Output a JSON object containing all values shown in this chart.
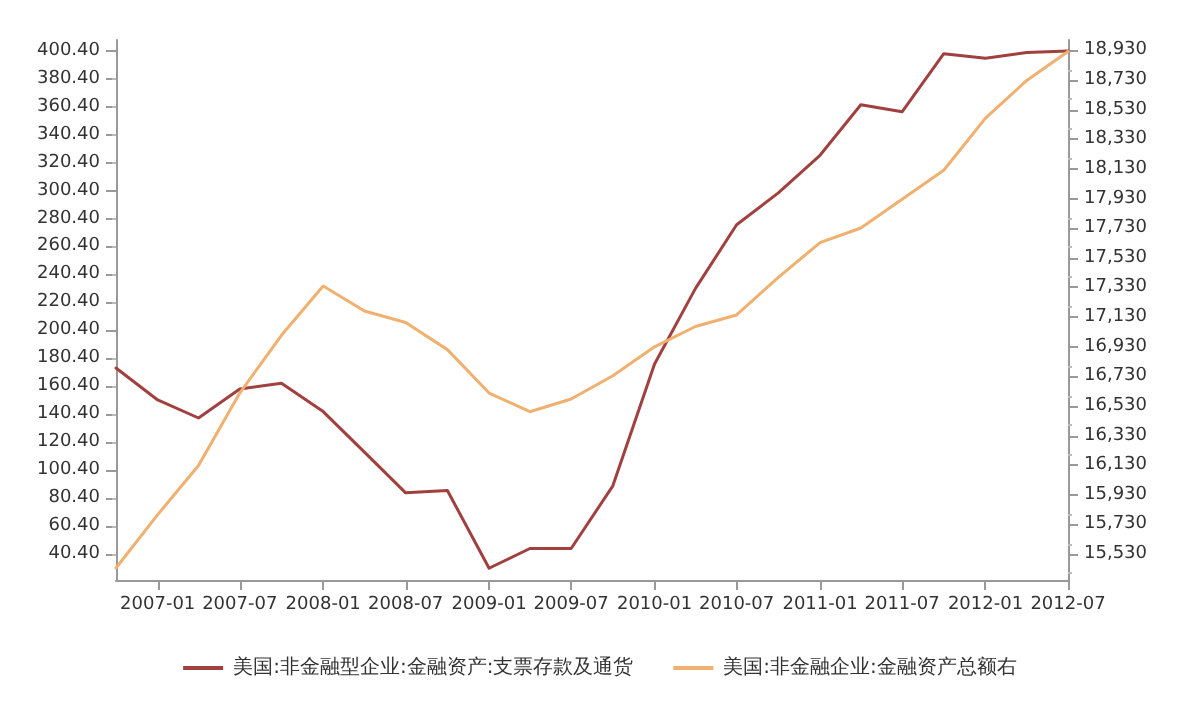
{
  "chart_data": {
    "type": "line",
    "x": [
      "2006-10",
      "2007-01",
      "2007-04",
      "2007-07",
      "2007-10",
      "2008-01",
      "2008-04",
      "2008-07",
      "2008-10",
      "2009-01",
      "2009-04",
      "2009-07",
      "2009-10",
      "2010-01",
      "2010-04",
      "2010-07",
      "2010-10",
      "2011-01",
      "2011-04",
      "2011-07",
      "2011-10",
      "2012-01",
      "2012-04",
      "2012-07"
    ],
    "series": [
      {
        "name": "美国:非金融型企业:金融资产:支票存款及通货",
        "color": "#a0403f",
        "values": [
          173.5,
          150.7,
          137.8,
          158.5,
          162.7,
          142.4,
          113.4,
          84.3,
          86,
          30.4,
          44.5,
          44.5,
          89.3,
          176.4,
          230.3,
          275.9,
          298.7,
          325.6,
          361.7,
          356.7,
          398.2,
          394.9,
          399,
          400.2
        ]
      },
      {
        "name": "美国:非金融企业:金融资产总额右",
        "color": "#f0b070",
        "axis": "y2",
        "values": [
          15436,
          15796,
          16128,
          16617,
          17007,
          17339,
          17171,
          17093,
          16910,
          16617,
          16491,
          16577,
          16734,
          16929,
          17066,
          17144,
          17398,
          17632,
          17731,
          17925,
          18121,
          18473,
          18727,
          18922
        ]
      }
    ],
    "xlim": [
      "2006-10",
      "2012-07"
    ],
    "xticks": [
      "2007-01",
      "2007-07",
      "2008-01",
      "2008-07",
      "2009-01",
      "2009-07",
      "2010-01",
      "2010-07",
      "2011-01",
      "2011-07",
      "2012-01",
      "2012-07"
    ],
    "ylim": [
      22,
      408
    ],
    "yticks": [
      {
        "value": 40.4,
        "label": "40.40"
      },
      {
        "value": 60.4,
        "label": "60.40"
      },
      {
        "value": 80.4,
        "label": "80.40"
      },
      {
        "value": 100.4,
        "label": "100.40"
      },
      {
        "value": 120.4,
        "label": "120.40"
      },
      {
        "value": 140.4,
        "label": "140.40"
      },
      {
        "value": 160.4,
        "label": "160.40"
      },
      {
        "value": 180.4,
        "label": "180.40"
      },
      {
        "value": 200.4,
        "label": "200.40"
      },
      {
        "value": 220.4,
        "label": "220.40"
      },
      {
        "value": 240.4,
        "label": "240.40"
      },
      {
        "value": 260.4,
        "label": "260.40"
      },
      {
        "value": 280.4,
        "label": "280.40"
      },
      {
        "value": 300.4,
        "label": "300.40"
      },
      {
        "value": 320.4,
        "label": "320.40"
      },
      {
        "value": 340.4,
        "label": "340.40"
      },
      {
        "value": 360.4,
        "label": "360.40"
      },
      {
        "value": 380.4,
        "label": "380.40"
      },
      {
        "value": 400.4,
        "label": "400.40"
      }
    ],
    "y2lim": [
      15355,
      19000
    ],
    "y2ticks": [
      {
        "value": 15530,
        "label": "15,530"
      },
      {
        "value": 15730,
        "label": "15,730"
      },
      {
        "value": 15930,
        "label": "15,930"
      },
      {
        "value": 16130,
        "label": "16,130"
      },
      {
        "value": 16330,
        "label": "16,330"
      },
      {
        "value": 16530,
        "label": "16,530"
      },
      {
        "value": 16730,
        "label": "16,730"
      },
      {
        "value": 16930,
        "label": "16,930"
      },
      {
        "value": 17130,
        "label": "17,130"
      },
      {
        "value": 17330,
        "label": "17,330"
      },
      {
        "value": 17530,
        "label": "17,530"
      },
      {
        "value": 17730,
        "label": "17,730"
      },
      {
        "value": 17930,
        "label": "17,930"
      },
      {
        "value": 18130,
        "label": "18,130"
      },
      {
        "value": 18330,
        "label": "18,330"
      },
      {
        "value": 18530,
        "label": "18,530"
      },
      {
        "value": 18730,
        "label": "18,730"
      },
      {
        "value": 18930,
        "label": "18,930"
      }
    ],
    "grid": false,
    "legend": "bottom",
    "marker": "none",
    "line_style": "solid"
  }
}
